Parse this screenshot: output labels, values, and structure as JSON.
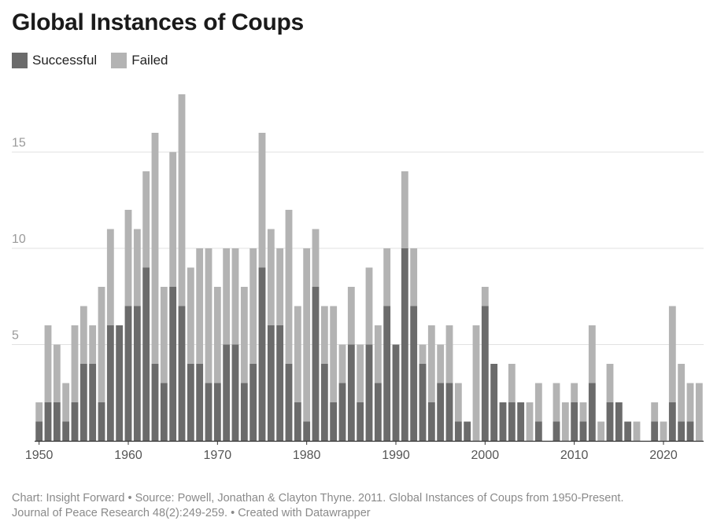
{
  "header": {
    "title": "Global Instances of Coups"
  },
  "legend": {
    "items": [
      {
        "label": "Successful",
        "color": "#6b6b6b"
      },
      {
        "label": "Failed",
        "color": "#b3b3b3"
      }
    ]
  },
  "footer": {
    "line1": "Chart: Insight Forward • Source: Powell, Jonathan & Clayton Thyne. 2011. Global Instances of Coups from 1950-Present.",
    "line2": "Journal of Peace Research 48(2):249-259. • Created with Datawrapper"
  },
  "chart_data": {
    "type": "bar",
    "stacked": true,
    "title": "Global Instances of Coups",
    "xlabel": "",
    "ylabel": "",
    "ylim": [
      0,
      18
    ],
    "yticks": [
      5,
      10,
      15
    ],
    "xticks": [
      1950,
      1960,
      1970,
      1980,
      1990,
      2000,
      2010,
      2020
    ],
    "grid": true,
    "legend_position": "top-left",
    "categories": [
      1950,
      1951,
      1952,
      1953,
      1954,
      1955,
      1956,
      1957,
      1958,
      1959,
      1960,
      1961,
      1962,
      1963,
      1964,
      1965,
      1966,
      1967,
      1968,
      1969,
      1970,
      1971,
      1972,
      1973,
      1974,
      1975,
      1976,
      1977,
      1978,
      1979,
      1980,
      1981,
      1982,
      1983,
      1984,
      1985,
      1986,
      1987,
      1988,
      1989,
      1990,
      1991,
      1992,
      1993,
      1994,
      1995,
      1996,
      1997,
      1998,
      1999,
      2000,
      2001,
      2002,
      2003,
      2004,
      2005,
      2006,
      2007,
      2008,
      2009,
      2010,
      2011,
      2012,
      2013,
      2014,
      2015,
      2016,
      2017,
      2018,
      2019,
      2020,
      2021,
      2022,
      2023,
      2024
    ],
    "series": [
      {
        "name": "Successful",
        "color": "#6b6b6b",
        "values": [
          1,
          2,
          2,
          1,
          2,
          4,
          4,
          2,
          6,
          6,
          7,
          7,
          9,
          4,
          3,
          8,
          7,
          4,
          4,
          3,
          3,
          5,
          5,
          3,
          4,
          9,
          6,
          6,
          4,
          2,
          1,
          8,
          4,
          2,
          3,
          5,
          2,
          5,
          3,
          7,
          5,
          10,
          7,
          4,
          2,
          3,
          3,
          1,
          1,
          0,
          7,
          4,
          2,
          2,
          2,
          0,
          1,
          0,
          1,
          0,
          2,
          1,
          3,
          0,
          2,
          2,
          1,
          0,
          0,
          1,
          0,
          2,
          1,
          1,
          0
        ]
      },
      {
        "name": "Failed",
        "color": "#b3b3b3",
        "values": [
          1,
          4,
          3,
          2,
          4,
          3,
          2,
          6,
          5,
          0,
          5,
          4,
          5,
          12,
          5,
          7,
          11,
          5,
          6,
          7,
          5,
          5,
          5,
          5,
          6,
          7,
          5,
          4,
          8,
          5,
          9,
          3,
          3,
          5,
          2,
          3,
          3,
          4,
          3,
          3,
          0,
          4,
          3,
          1,
          4,
          2,
          3,
          2,
          0,
          6,
          1,
          0,
          0,
          2,
          0,
          2,
          2,
          0,
          2,
          2,
          1,
          1,
          3,
          1,
          2,
          0,
          0,
          1,
          0,
          1,
          1,
          5,
          3,
          2,
          3
        ]
      }
    ]
  }
}
